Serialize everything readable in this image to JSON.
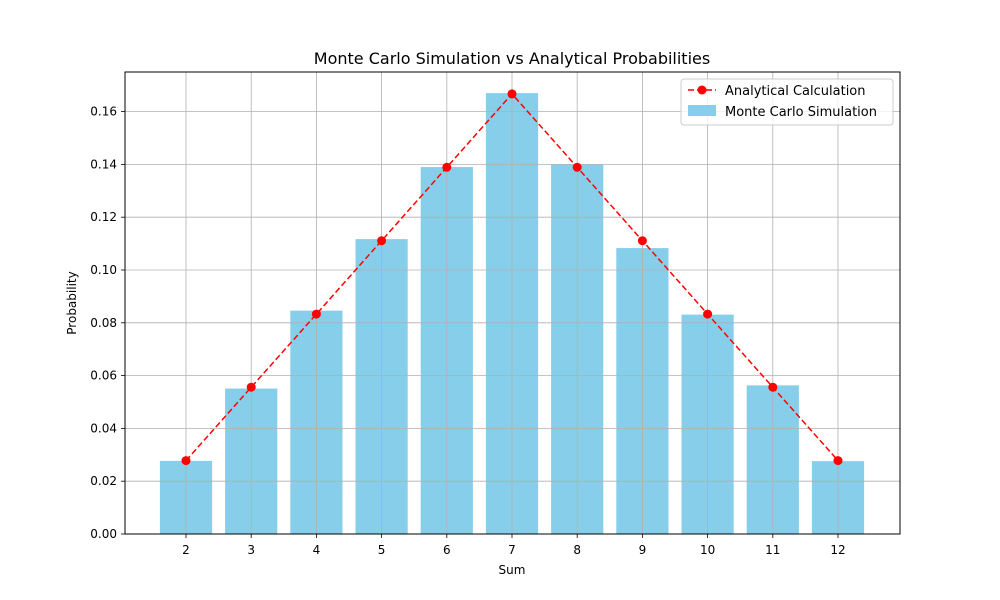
{
  "chart_data": {
    "type": "bar",
    "title": "Monte Carlo Simulation vs Analytical Probabilities",
    "xlabel": "Sum",
    "ylabel": "Probability",
    "categories": [
      2,
      3,
      4,
      5,
      6,
      7,
      8,
      9,
      10,
      11,
      12
    ],
    "ylim": [
      0,
      0.175
    ],
    "yticks": [
      0.0,
      0.02,
      0.04,
      0.06,
      0.08,
      0.1,
      0.12,
      0.14,
      0.16
    ],
    "ytick_labels": [
      "0.00",
      "0.02",
      "0.04",
      "0.06",
      "0.08",
      "0.10",
      "0.12",
      "0.14",
      "0.16"
    ],
    "grid": true,
    "legend_position": "top-right",
    "series": [
      {
        "name": "Analytical Calculation",
        "type": "line",
        "style": "dashed",
        "marker": "circle",
        "color": "#ff0000",
        "values": [
          0.0278,
          0.0556,
          0.0833,
          0.1111,
          0.1389,
          0.1667,
          0.1389,
          0.1111,
          0.0833,
          0.0556,
          0.0278
        ]
      },
      {
        "name": "Monte Carlo Simulation",
        "type": "bar",
        "color": "#87ceeb",
        "values": [
          0.0277,
          0.0551,
          0.0846,
          0.1117,
          0.139,
          0.167,
          0.1399,
          0.1083,
          0.0831,
          0.0563,
          0.0276
        ]
      }
    ]
  }
}
